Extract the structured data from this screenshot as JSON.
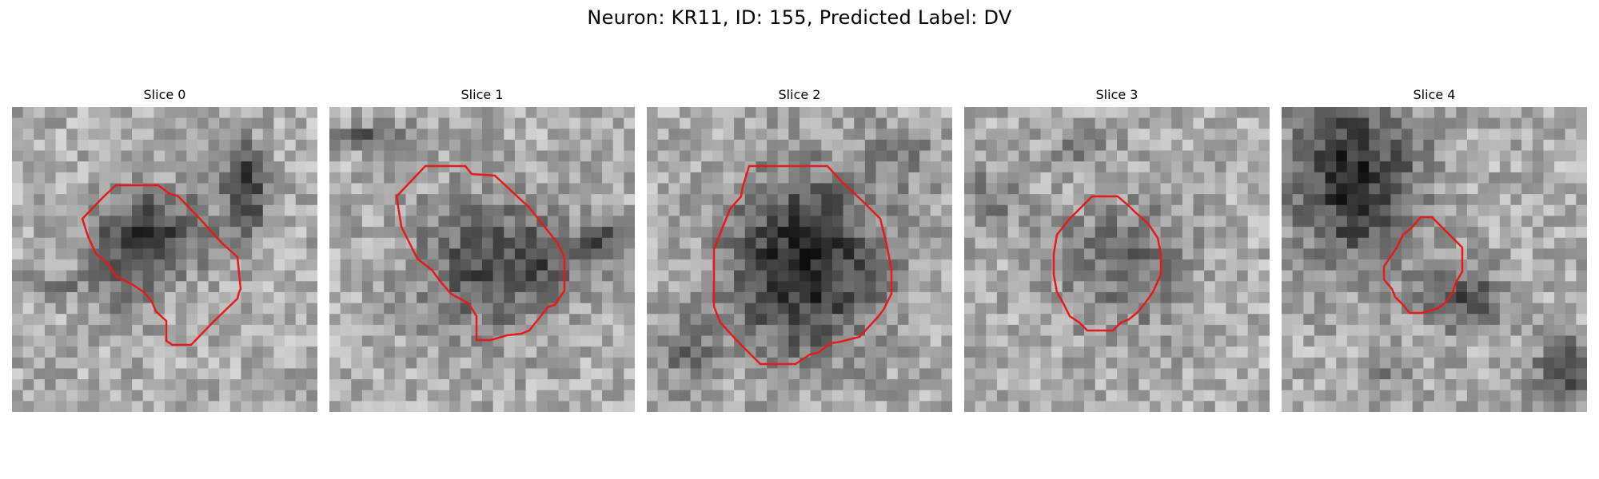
{
  "title": "Neuron: KR11, ID: 155, Predicted Label: DV",
  "panels": [
    {
      "label": "Slice 0"
    },
    {
      "label": "Slice 1"
    },
    {
      "label": "Slice 2"
    },
    {
      "label": "Slice 3"
    },
    {
      "label": "Slice 4"
    }
  ],
  "colors": {
    "contour": "#e41a1c",
    "background": "#ffffff"
  }
}
